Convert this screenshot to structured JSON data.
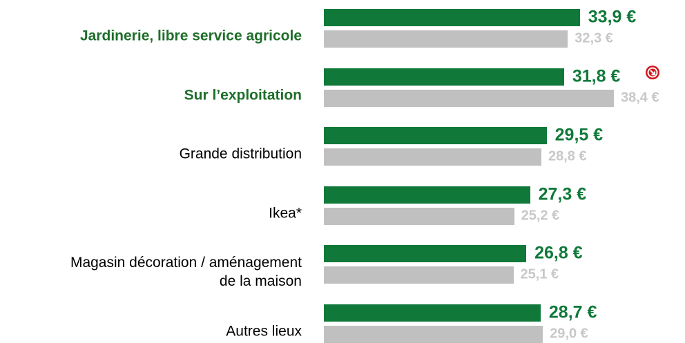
{
  "chart_data": {
    "type": "bar",
    "orientation": "horizontal",
    "categories": [
      "Jardinerie, libre service agricole",
      "Sur l’exploitation",
      "Grande distribution",
      "Ikea*",
      "Magasin décoration / aménagement\nde la maison",
      "Autres lieux"
    ],
    "bold": [
      true,
      true,
      false,
      false,
      false,
      false
    ],
    "series": [
      {
        "color": "#10793a",
        "values": [
          33.9,
          31.8,
          29.5,
          27.3,
          26.8,
          28.7
        ],
        "value_labels": [
          "33,9 €",
          "31,8 €",
          "29,5 €",
          "27,3 €",
          "26,8 €",
          "28,7 €"
        ]
      },
      {
        "color": "#c0c0c0",
        "values": [
          32.3,
          38.4,
          28.8,
          25.2,
          25.1,
          29.0
        ],
        "value_labels": [
          "32,3 €",
          "38,4 €",
          "28,8 €",
          "25,2 €",
          "25,1 €",
          "29,0 €"
        ]
      }
    ]
  }
}
